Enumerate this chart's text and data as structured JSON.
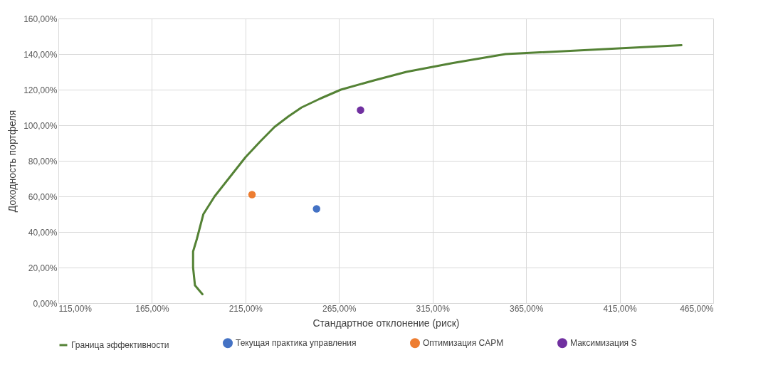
{
  "chart_data": {
    "type": "scatter",
    "xlabel": "Стандартное отклонение (риск)",
    "ylabel": "Доходность портфеля",
    "xlim": [
      115,
      465
    ],
    "ylim": [
      0,
      160
    ],
    "xticks": [
      {
        "value": 115,
        "label": "115,00%"
      },
      {
        "value": 165,
        "label": "165,00%"
      },
      {
        "value": 215,
        "label": "215,00%"
      },
      {
        "value": 265,
        "label": "265,00%"
      },
      {
        "value": 315,
        "label": "315,00%"
      },
      {
        "value": 365,
        "label": "365,00%"
      },
      {
        "value": 415,
        "label": "415,00%"
      },
      {
        "value": 465,
        "label": "465,00%"
      }
    ],
    "yticks": [
      {
        "value": 0,
        "label": "0,00%"
      },
      {
        "value": 20,
        "label": "20,00%"
      },
      {
        "value": 40,
        "label": "40,00%"
      },
      {
        "value": 60,
        "label": "60,00%"
      },
      {
        "value": 80,
        "label": "80,00%"
      },
      {
        "value": 100,
        "label": "100,00%"
      },
      {
        "value": 120,
        "label": "120,00%"
      },
      {
        "value": 140,
        "label": "140,00%"
      },
      {
        "value": 160,
        "label": "160,00%"
      }
    ],
    "grid": true,
    "legend": "bottom",
    "marker": "circle",
    "series": [
      {
        "name": "Граница эффективности",
        "type": "line",
        "marker": "none",
        "color": "#548235",
        "x": [
          192,
          188,
          187,
          187,
          189,
          191,
          192.5,
          198.5,
          206,
          215,
          223,
          230.5,
          238,
          245,
          255,
          266,
          283,
          301,
          326,
          354,
          448
        ],
        "values": [
          5,
          10,
          20,
          29,
          36,
          44,
          50,
          60,
          70,
          82,
          91,
          99,
          105,
          110,
          115,
          120,
          125,
          130,
          135,
          140,
          145
        ]
      },
      {
        "name": "Текущая практика управления",
        "color": "#4472c4",
        "x": [
          253
        ],
        "values": [
          53
        ]
      },
      {
        "name": "Оптимизация CAPM",
        "color": "#ed7d31",
        "x": [
          218.5
        ],
        "values": [
          61
        ]
      },
      {
        "name": "Максимизация S",
        "color": "#7030a0",
        "x": [
          276.5
        ],
        "values": [
          108.5
        ]
      }
    ]
  }
}
